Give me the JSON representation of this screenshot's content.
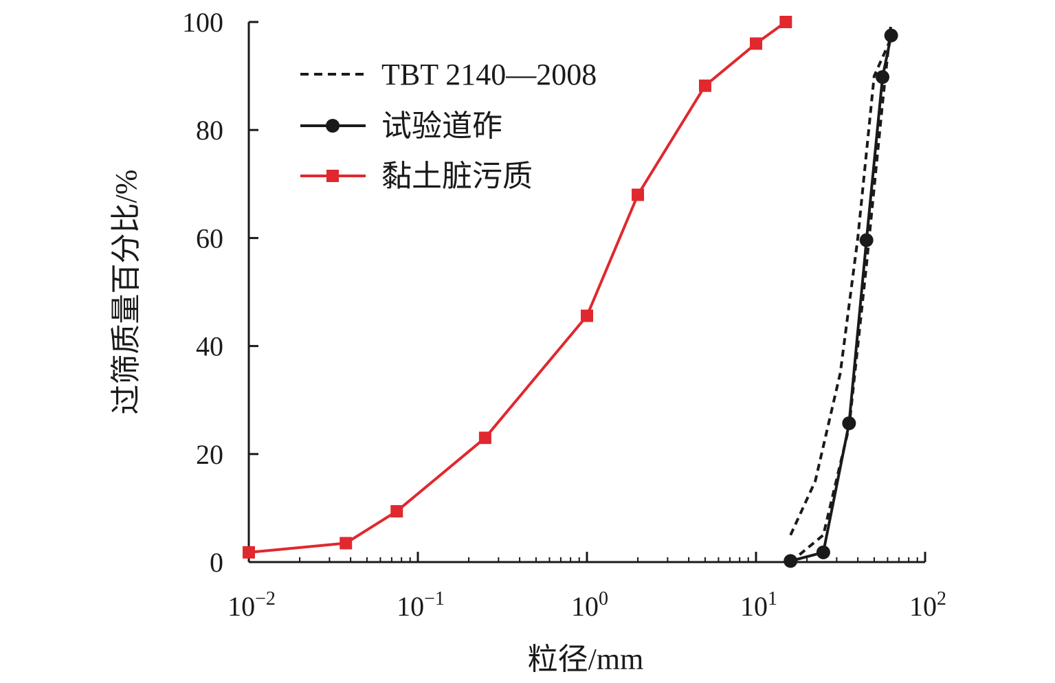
{
  "chart_data": {
    "type": "line",
    "xlabel": "粒径/mm",
    "ylabel": "过筛质量百分比/%",
    "x_scale": "log",
    "xlim": [
      0.01,
      100
    ],
    "ylim": [
      0,
      100
    ],
    "x_ticks": [
      {
        "base": "10",
        "exp": "−2",
        "value": 0.01
      },
      {
        "base": "10",
        "exp": "−1",
        "value": 0.1
      },
      {
        "base": "10",
        "exp": "0",
        "value": 1
      },
      {
        "base": "10",
        "exp": "1",
        "value": 10
      },
      {
        "base": "10",
        "exp": "2",
        "value": 100
      }
    ],
    "y_ticks": [
      {
        "label": "0",
        "value": 0
      },
      {
        "label": "20",
        "value": 20
      },
      {
        "label": "40",
        "value": 40
      },
      {
        "label": "60",
        "value": 60
      },
      {
        "label": "80",
        "value": 80
      },
      {
        "label": "100",
        "value": 100
      }
    ],
    "grid": false,
    "legend_position": "top-left",
    "series": [
      {
        "name": "TBT 2140—2008",
        "style": "dashed",
        "marker": "none",
        "color": "#1a1a1a",
        "lines": [
          {
            "x": [
              16,
              22.4,
              31.5,
              40,
              50,
              63
            ],
            "y": [
              5,
              15,
              35,
              60,
              90,
              97
            ]
          },
          {
            "x": [
              16,
              25,
              35.5,
              45,
              56,
              63
            ],
            "y": [
              0,
              5,
              25,
              55,
              85,
              100
            ]
          }
        ]
      },
      {
        "name": "试验道砟",
        "style": "solid",
        "marker": "circle",
        "color": "#1a1a1a",
        "x": [
          16,
          25,
          35.5,
          45,
          56,
          63
        ],
        "y": [
          0.2,
          1.8,
          25.7,
          59.6,
          89.8,
          97.5
        ]
      },
      {
        "name": "黏土脏污质",
        "style": "solid",
        "marker": "square",
        "color": "#e0282e",
        "x": [
          0.01,
          0.0375,
          0.075,
          0.25,
          1,
          2,
          5,
          10,
          15
        ],
        "y": [
          1.8,
          3.5,
          9.4,
          23,
          45.6,
          68,
          88.2,
          96,
          100
        ]
      }
    ]
  }
}
